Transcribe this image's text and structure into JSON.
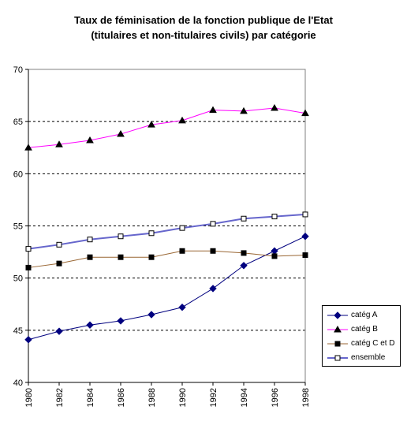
{
  "chart_data": {
    "type": "line",
    "title": "Taux de féminisation de la fonction publique de l'Etat",
    "subtitle": "(titulaires et non-titulaires civils) par catégorie",
    "xlabel": "",
    "ylabel": "",
    "x": [
      "1980",
      "1982",
      "1984",
      "1986",
      "1988",
      "1990",
      "1992",
      "1994",
      "1996",
      "1998"
    ],
    "ylim": [
      40,
      70
    ],
    "yticks": [
      40,
      45,
      50,
      55,
      60,
      65,
      70
    ],
    "grid": "horizontal dashed",
    "legend_position": "right",
    "series": [
      {
        "name": "catég A",
        "color": "#00007f",
        "marker": "diamond",
        "values": [
          44.1,
          44.9,
          45.5,
          45.9,
          46.5,
          47.2,
          49.0,
          51.2,
          52.6,
          54.0
        ]
      },
      {
        "name": "catég B",
        "color": "#ff00ff",
        "marker": "triangle",
        "values": [
          62.5,
          62.8,
          63.2,
          63.8,
          64.7,
          65.1,
          66.1,
          66.0,
          66.3,
          65.8
        ]
      },
      {
        "name": "catég C et D",
        "color": "#996633",
        "marker": "square",
        "values": [
          51.0,
          51.4,
          52.0,
          52.0,
          52.0,
          52.6,
          52.6,
          52.4,
          52.1,
          52.2
        ]
      },
      {
        "name": "ensemble",
        "color": "#6666cc",
        "marker": "open-square",
        "values": [
          52.8,
          53.2,
          53.7,
          54.0,
          54.3,
          54.8,
          55.2,
          55.7,
          55.9,
          56.1
        ]
      }
    ]
  }
}
